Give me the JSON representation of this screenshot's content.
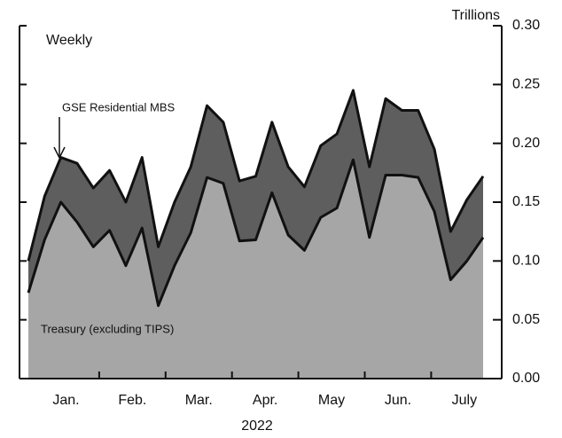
{
  "chart_data": {
    "type": "stacked_area",
    "title": "Weekly",
    "y_axis_label": "Trillions",
    "x_axis_label": "2022",
    "annotations": [
      "GSE Residential MBS",
      "Treasury (excluding TIPS)"
    ],
    "categories": [
      null,
      null,
      null,
      null,
      null,
      null,
      null,
      null,
      null,
      null,
      null,
      null,
      null,
      null,
      null,
      null,
      null,
      null,
      null,
      null,
      null,
      null,
      null,
      null,
      null,
      null,
      null,
      null,
      null
    ],
    "month_labels": [
      "Jan.",
      "Feb.",
      "Mar.",
      "Apr.",
      "May",
      "Jun.",
      "July"
    ],
    "series": [
      {
        "name": "Treasury (excluding TIPS)",
        "color": "#a6a6a6",
        "values": [
          0.073,
          0.118,
          0.15,
          0.133,
          0.112,
          0.126,
          0.096,
          0.128,
          0.062,
          0.096,
          0.124,
          0.171,
          0.166,
          0.117,
          0.118,
          0.158,
          0.122,
          0.109,
          0.137,
          0.145,
          0.186,
          0.12,
          0.173,
          0.173,
          0.171,
          0.142,
          0.084,
          0.1,
          0.12
        ]
      },
      {
        "name": "GSE Residential MBS",
        "color": "#5e5e5e",
        "values": [
          0.027,
          0.037,
          0.038,
          0.05,
          0.05,
          0.051,
          0.054,
          0.06,
          0.05,
          0.054,
          0.056,
          0.061,
          0.052,
          0.051,
          0.054,
          0.06,
          0.058,
          0.054,
          0.061,
          0.063,
          0.059,
          0.06,
          0.065,
          0.055,
          0.057,
          0.053,
          0.041,
          0.052,
          0.052
        ]
      }
    ],
    "ylim": [
      0,
      0.3
    ],
    "yticks": [
      {
        "value": 0,
        "label": "0.00"
      },
      0.05,
      {
        "value": 0.1,
        "label": "0.10"
      },
      0.15,
      {
        "value": 0.2,
        "label": "0.20"
      },
      0.25,
      {
        "value": 0.3,
        "label": "0.30"
      }
    ],
    "y_axis_side": "right",
    "grid": false
  }
}
